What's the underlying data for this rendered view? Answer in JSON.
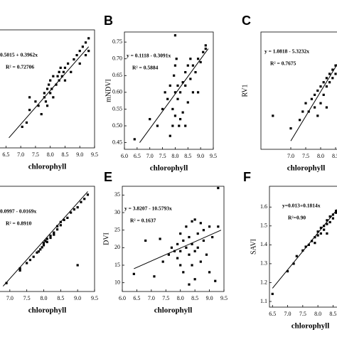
{
  "chart_data": [
    {
      "type": "scatter",
      "equation": "0.5015 + 0.3962x",
      "r2": "R² = 0.72706",
      "x_label": "chlorophyll",
      "color": "#000000",
      "xlim": [
        6.25,
        9.5
      ],
      "ylim": [
        3.0,
        4.4
      ],
      "xticks": [
        6.5,
        {
          "value": 7,
          "label": "7.0"
        },
        7.5,
        {
          "value": 8,
          "label": "8.0"
        },
        8.5,
        {
          "value": 9,
          "label": "9.0"
        },
        9.5
      ],
      "x": [
        7.05,
        7.2,
        7.3,
        7.3,
        7.5,
        7.6,
        7.7,
        7.8,
        7.8,
        7.85,
        7.9,
        7.9,
        7.95,
        8.0,
        8.0,
        8.05,
        8.1,
        8.1,
        8.2,
        8.25,
        8.3,
        8.3,
        8.35,
        8.4,
        8.45,
        8.5,
        8.5,
        8.6,
        8.7,
        8.8,
        8.9,
        9.0,
        9.0,
        9.1,
        9.2,
        9.2,
        9.3,
        9.3
      ],
      "y": [
        3.25,
        3.3,
        3.6,
        3.45,
        3.55,
        3.5,
        3.4,
        3.65,
        3.6,
        3.55,
        3.7,
        3.5,
        3.75,
        3.65,
        3.8,
        3.7,
        3.85,
        3.6,
        3.75,
        3.85,
        3.8,
        3.9,
        3.95,
        3.85,
        3.9,
        3.95,
        3.8,
        4.0,
        3.9,
        4.05,
        4.1,
        4.15,
        4.0,
        4.2,
        4.25,
        4.1,
        4.3,
        4.15
      ],
      "trend": {
        "x": [
          6.6,
          9.3
        ],
        "y": [
          3.12,
          4.2
        ]
      }
    },
    {
      "type": "scatter",
      "panel": "B",
      "equation": "y = 0.1118 - 0.3091x",
      "r2": "R² = 0.5884",
      "x_label": "chlorophyll",
      "y_label": "mNDVI",
      "color": "#000000",
      "xlim": [
        6.0,
        9.5
      ],
      "ylim": [
        0.43,
        0.78
      ],
      "xticks": [
        {
          "value": 6,
          "label": "6.0"
        },
        6.5,
        {
          "value": 7,
          "label": "7.0"
        },
        7.5,
        {
          "value": 8,
          "label": "8.0"
        },
        8.5,
        {
          "value": 9,
          "label": "9.0"
        },
        9.5
      ],
      "yticks": [
        0.45,
        {
          "value": 0.5,
          "label": "0.50"
        },
        0.55,
        {
          "value": 0.6,
          "label": "0.60"
        },
        0.65,
        {
          "value": 0.7,
          "label": "0.70"
        },
        0.75
      ],
      "x": [
        6.4,
        7.0,
        7.3,
        7.5,
        7.6,
        7.7,
        7.8,
        7.9,
        7.9,
        7.95,
        8.0,
        8.0,
        8.0,
        8.05,
        8.1,
        8.1,
        8.2,
        8.2,
        8.3,
        8.3,
        8.4,
        8.4,
        8.4,
        8.5,
        8.5,
        8.6,
        8.6,
        8.7,
        8.7,
        8.8,
        8.9,
        8.9,
        9.0,
        9.1,
        9.2,
        9.2,
        8.0,
        7.8,
        8.15
      ],
      "y": [
        0.46,
        0.52,
        0.5,
        0.55,
        0.6,
        0.58,
        0.62,
        0.5,
        0.55,
        0.65,
        0.6,
        0.53,
        0.68,
        0.7,
        0.58,
        0.62,
        0.52,
        0.6,
        0.54,
        0.63,
        0.5,
        0.62,
        0.66,
        0.57,
        0.68,
        0.64,
        0.7,
        0.6,
        0.68,
        0.66,
        0.7,
        0.6,
        0.69,
        0.72,
        0.74,
        0.73,
        0.77,
        0.47,
        0.5
      ],
      "trend": {
        "x": [
          6.6,
          9.3
        ],
        "y": [
          0.45,
          0.73
        ]
      }
    },
    {
      "type": "scatter",
      "panel": "C",
      "equation": "y = 1.0818 - 5.3232x",
      "r2": "R² = 0.7675",
      "x_label": "chlorophyll",
      "y_label": "RV1",
      "color": "#000000",
      "xlim": [
        6.0,
        9.5
      ],
      "ylim": [
        1.8,
        4.6
      ],
      "xticks": [
        {
          "value": 7,
          "label": "7.0"
        },
        7.5,
        {
          "value": 8,
          "label": "8.0"
        },
        8.5
      ],
      "x": [
        6.4,
        7.0,
        7.3,
        7.4,
        7.5,
        7.6,
        7.7,
        7.8,
        7.8,
        7.9,
        8.0,
        8.0,
        8.1,
        8.1,
        8.2,
        8.2,
        8.3,
        8.3,
        8.4,
        8.4,
        8.5,
        8.5,
        8.6,
        8.6,
        7.9,
        8.2
      ],
      "y": [
        2.6,
        2.3,
        2.5,
        2.7,
        2.9,
        2.7,
        3.0,
        2.8,
        3.1,
        3.2,
        2.9,
        3.3,
        3.1,
        3.4,
        3.3,
        3.5,
        3.4,
        3.6,
        3.5,
        3.7,
        3.8,
        3.6,
        4.2,
        3.9,
        2.6,
        2.8
      ],
      "trend": {
        "x": [
          7.0,
          8.7
        ],
        "y": [
          2.0,
          4.0
        ]
      }
    },
    {
      "type": "scatter",
      "equation": "0.0997 - 0.0169x",
      "r2": "R² = 0.8910",
      "x_label": "chlorophyll",
      "color": "#000000",
      "xlim": [
        6.5,
        9.5
      ],
      "ylim": [
        0.08,
        0.18
      ],
      "xticks": [
        {
          "value": 7,
          "label": "7.0"
        },
        7.5,
        {
          "value": 8,
          "label": "8.0"
        },
        8.5,
        {
          "value": 9,
          "label": "9.0"
        },
        9.5
      ],
      "x": [
        6.9,
        7.3,
        7.3,
        7.5,
        7.6,
        7.7,
        7.8,
        7.85,
        7.9,
        7.95,
        8.0,
        8.0,
        8.05,
        8.1,
        8.1,
        8.2,
        8.2,
        8.3,
        8.3,
        8.4,
        8.4,
        8.5,
        8.5,
        8.6,
        8.7,
        8.8,
        8.9,
        9.0,
        9.1,
        9.2,
        9.3,
        9.0
      ],
      "y": [
        0.088,
        0.102,
        0.1,
        0.107,
        0.11,
        0.113,
        0.117,
        0.118,
        0.12,
        0.122,
        0.124,
        0.126,
        0.128,
        0.13,
        0.127,
        0.133,
        0.131,
        0.136,
        0.134,
        0.139,
        0.142,
        0.143,
        0.146,
        0.148,
        0.15,
        0.155,
        0.158,
        0.16,
        0.165,
        0.168,
        0.172,
        0.105
      ],
      "trend": {
        "x": [
          6.8,
          9.3
        ],
        "y": [
          0.085,
          0.175
        ]
      }
    },
    {
      "type": "scatter",
      "panel": "E",
      "equation": "y = 3.8207 - 10.5793x",
      "r2": "R² = 0.1637",
      "x_label": "chlorophyll",
      "y_label": "DVI",
      "color": "#000000",
      "xlim": [
        6.0,
        9.5
      ],
      "ylim": [
        7.5,
        37.5
      ],
      "xticks": [
        {
          "value": 6,
          "label": "6.0"
        },
        6.5,
        {
          "value": 7,
          "label": "7.0"
        },
        7.5,
        {
          "value": 8,
          "label": "8.0"
        },
        8.5,
        {
          "value": 9,
          "label": "9.0"
        },
        9.5
      ],
      "yticks": [
        10,
        15,
        20,
        25,
        30,
        35
      ],
      "x": [
        6.4,
        6.8,
        7.1,
        7.3,
        7.4,
        7.6,
        7.7,
        7.8,
        7.9,
        7.9,
        8.0,
        8.0,
        8.0,
        8.1,
        8.1,
        8.2,
        8.2,
        8.3,
        8.3,
        8.3,
        8.4,
        8.4,
        8.4,
        8.5,
        8.5,
        8.5,
        8.6,
        8.6,
        8.7,
        8.7,
        8.8,
        8.8,
        8.9,
        9.0,
        9.0,
        9.1,
        9.2,
        9.3,
        9.3
      ],
      "y": [
        12.5,
        22,
        11.8,
        22.5,
        16,
        18,
        20,
        19,
        21,
        17,
        24,
        15,
        19,
        13,
        22,
        20,
        26,
        18,
        23,
        9.5,
        27.5,
        21,
        15,
        28,
        19,
        11,
        24,
        20,
        27,
        16,
        22,
        25,
        18,
        26,
        13,
        23,
        10.5,
        37,
        26
      ],
      "trend": {
        "x": [
          6.4,
          9.4
        ],
        "y": [
          14,
          25
        ]
      }
    },
    {
      "type": "scatter",
      "panel": "F",
      "equation": "y=0.013+0.1814x",
      "r2": "R²=0.90",
      "x_label": "chlorophyll",
      "y_label": "SAVI",
      "color": "#000000",
      "xlim": [
        6.4,
        9.5
      ],
      "ylim": [
        1.07,
        1.71
      ],
      "xticks": [
        6.5,
        {
          "value": 7,
          "label": "7.0"
        },
        7.5,
        {
          "value": 8,
          "label": "8.0"
        },
        8.5
      ],
      "yticks": [
        1.1,
        1.2,
        1.3,
        1.4,
        1.5,
        1.6
      ],
      "x": [
        6.5,
        7.0,
        7.2,
        7.3,
        7.5,
        7.6,
        7.7,
        7.8,
        7.9,
        8.0,
        8.0,
        8.1,
        8.1,
        8.2,
        8.2,
        8.3,
        8.3,
        8.4,
        8.4,
        8.5,
        8.5,
        8.6,
        8.6,
        7.9,
        8.3
      ],
      "y": [
        1.14,
        1.26,
        1.3,
        1.34,
        1.37,
        1.39,
        1.4,
        1.42,
        1.44,
        1.45,
        1.47,
        1.46,
        1.49,
        1.48,
        1.5,
        1.51,
        1.53,
        1.52,
        1.55,
        1.54,
        1.56,
        1.57,
        1.58,
        1.41,
        1.46
      ],
      "trend": {
        "x": [
          6.5,
          8.7
        ],
        "y": [
          1.17,
          1.6
        ]
      }
    }
  ]
}
